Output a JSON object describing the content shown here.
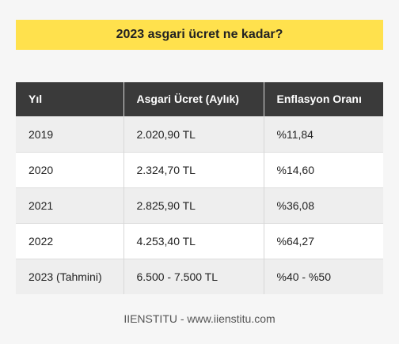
{
  "title": "2023 asgari ücret ne kadar?",
  "table": {
    "headers": [
      "Yıl",
      "Asgari Ücret (Aylık)",
      "Enflasyon Oranı"
    ],
    "rows": [
      [
        "2019",
        "2.020,90 TL",
        "%11,84"
      ],
      [
        "2020",
        "2.324,70 TL",
        "%14,60"
      ],
      [
        "2021",
        "2.825,90 TL",
        "%36,08"
      ],
      [
        "2022",
        "4.253,40 TL",
        "%64,27"
      ],
      [
        "2023 (Tahmini)",
        "6.500 - 7.500 TL",
        "%40 - %50"
      ]
    ]
  },
  "footer": "IIENSTITU - www.iienstitu.com",
  "colors": {
    "title_bg": "#ffe14d",
    "header_bg": "#3a3a3a",
    "stripe_bg": "#eeeeee"
  }
}
